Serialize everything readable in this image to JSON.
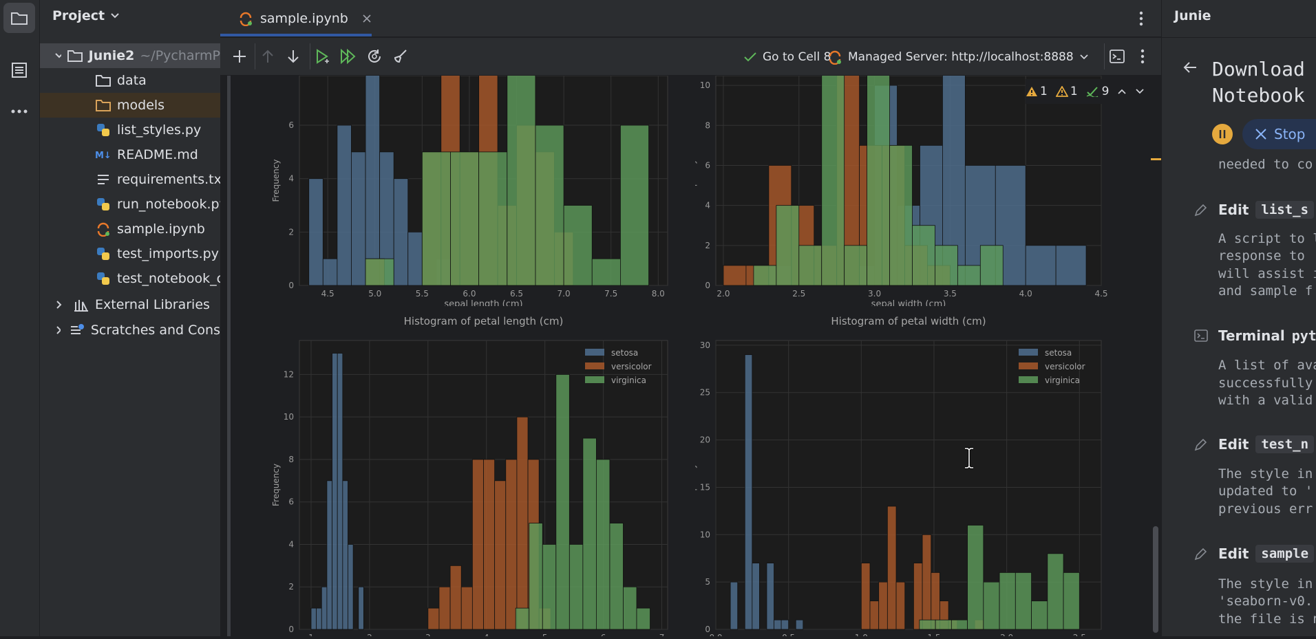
{
  "project": {
    "title": "Project",
    "root": {
      "name": "Junie2",
      "path": "~/PycharmP"
    },
    "items": [
      {
        "label": "data",
        "icon": "folder-icon"
      },
      {
        "label": "models",
        "icon": "folder-icon"
      },
      {
        "label": "list_styles.py",
        "icon": "python-file-icon"
      },
      {
        "label": "README.md",
        "icon": "markdown-file-icon"
      },
      {
        "label": "requirements.txt",
        "icon": "text-file-icon"
      },
      {
        "label": "run_notebook.py",
        "icon": "python-file-icon"
      },
      {
        "label": "sample.ipynb",
        "icon": "notebook-file-icon"
      },
      {
        "label": "test_imports.py",
        "icon": "python-file-icon"
      },
      {
        "label": "test_notebook_c",
        "icon": "python-file-icon"
      }
    ],
    "external": "External Libraries",
    "scratches": "Scratches and Cons"
  },
  "editor": {
    "tab_label": "sample.ipynb",
    "go_to_cell": "Go to Cell 8",
    "server": "Managed Server: http://localhost:8888",
    "inspections": {
      "errors": "1",
      "warnings": "1",
      "ok": "9"
    }
  },
  "junie": {
    "title": "Junie",
    "heading_line1": "Download",
    "heading_line2": "Notebook",
    "stop_label": "Stop",
    "needed_text": "needed to co",
    "entries": [
      {
        "action": "Edit",
        "target": "list_s",
        "lines": [
          "A script to l",
          "response to",
          "will assist i",
          "and sample f"
        ]
      },
      {
        "action": "Terminal",
        "target": "pyth",
        "lines": [
          "A list of ava",
          "successfully",
          "with a valid"
        ]
      },
      {
        "action": "Edit",
        "target": "test_n",
        "lines": [
          "The style in",
          "updated to '",
          "previous err"
        ]
      },
      {
        "action": "Edit",
        "target": "sample",
        "lines": [
          "The style in",
          "'seaborn-v0.",
          "the file is n"
        ]
      }
    ]
  },
  "colors": {
    "setosa": "#4f6f8f",
    "versicolor": "#a8582a",
    "virginica": "#5d9a5a",
    "virginica_light": "#8fc06e"
  },
  "chart_data": [
    {
      "type": "histogram",
      "title": "",
      "xlabel": "sepal length (cm)",
      "ylabel": "Frequency",
      "xlim": [
        4.2,
        8.1
      ],
      "ylim": [
        0,
        8.5
      ],
      "xticks": [
        "4.5",
        "5.0",
        "5.5",
        "6.0",
        "6.5",
        "7.0",
        "7.5",
        "8.0"
      ],
      "yticks": [
        "0",
        "2",
        "4",
        "6",
        "8"
      ],
      "series": [
        {
          "name": "setosa",
          "bins": [
            [
              4.3,
              4.45,
              4
            ],
            [
              4.45,
              4.6,
              1
            ],
            [
              4.6,
              4.75,
              6
            ],
            [
              4.75,
              4.9,
              5
            ],
            [
              4.9,
              5.05,
              9
            ],
            [
              5.05,
              5.2,
              5
            ],
            [
              5.2,
              5.35,
              4
            ],
            [
              5.35,
              5.5,
              2
            ],
            [
              5.5,
              5.65,
              0
            ],
            [
              5.65,
              5.8,
              1
            ]
          ]
        },
        {
          "name": "versicolor",
          "bins": [
            [
              4.9,
              5.1,
              1
            ],
            [
              5.1,
              5.3,
              0
            ],
            [
              5.3,
              5.5,
              0
            ],
            [
              5.5,
              5.7,
              5
            ],
            [
              5.7,
              5.9,
              9
            ],
            [
              5.9,
              6.1,
              5
            ],
            [
              6.1,
              6.3,
              9
            ],
            [
              6.3,
              6.5,
              3
            ],
            [
              6.5,
              6.7,
              6
            ],
            [
              6.7,
              6.9,
              5
            ],
            [
              6.9,
              7.1,
              2
            ]
          ]
        },
        {
          "name": "virginica",
          "bins": [
            [
              4.9,
              5.2,
              1
            ],
            [
              5.2,
              5.5,
              0
            ],
            [
              5.5,
              5.8,
              5
            ],
            [
              5.8,
              6.1,
              5
            ],
            [
              6.1,
              6.4,
              5
            ],
            [
              6.4,
              6.7,
              14
            ],
            [
              6.7,
              7.0,
              6
            ],
            [
              7.0,
              7.3,
              3
            ],
            [
              7.3,
              7.6,
              1
            ],
            [
              7.6,
              7.9,
              6
            ]
          ]
        }
      ]
    },
    {
      "type": "histogram",
      "title": "",
      "xlabel": "sepal width (cm)",
      "ylabel": "Frequency",
      "xlim": [
        1.95,
        4.5
      ],
      "ylim": [
        0,
        11
      ],
      "xticks": [
        "2.0",
        "2.5",
        "3.0",
        "3.5",
        "4.0",
        "4.5"
      ],
      "yticks": [
        "0",
        "2",
        "4",
        "6",
        "8",
        "10"
      ],
      "series": [
        {
          "name": "setosa",
          "bins": [
            [
              2.3,
              2.45,
              1
            ],
            [
              2.9,
              3.05,
              1
            ],
            [
              3.0,
              3.15,
              10
            ],
            [
              3.15,
              3.3,
              4
            ],
            [
              3.3,
              3.45,
              7
            ],
            [
              3.45,
              3.6,
              14
            ],
            [
              3.6,
              3.8,
              6
            ],
            [
              3.8,
              4.0,
              6
            ],
            [
              4.0,
              4.2,
              2
            ],
            [
              4.2,
              4.4,
              2
            ]
          ]
        },
        {
          "name": "versicolor",
          "bins": [
            [
              2.0,
              2.15,
              1
            ],
            [
              2.15,
              2.3,
              1
            ],
            [
              2.3,
              2.45,
              6
            ],
            [
              2.45,
              2.6,
              4
            ],
            [
              2.6,
              2.75,
              2
            ],
            [
              2.75,
              2.9,
              11
            ],
            [
              2.9,
              3.05,
              7
            ],
            [
              3.05,
              3.2,
              7
            ],
            [
              3.2,
              3.35,
              2
            ],
            [
              3.35,
              3.5,
              1
            ]
          ]
        },
        {
          "name": "virginica",
          "bins": [
            [
              2.2,
              2.35,
              1
            ],
            [
              2.35,
              2.5,
              4
            ],
            [
              2.5,
              2.65,
              2
            ],
            [
              2.65,
              2.8,
              11
            ],
            [
              2.8,
              2.95,
              2
            ],
            [
              2.95,
              3.1,
              11
            ],
            [
              3.1,
              3.25,
              7
            ],
            [
              3.25,
              3.4,
              3
            ],
            [
              3.4,
              3.55,
              2
            ],
            [
              3.55,
              3.7,
              1
            ],
            [
              3.7,
              3.85,
              2
            ]
          ]
        }
      ]
    },
    {
      "type": "histogram",
      "title": "Histogram of petal length (cm)",
      "xlabel": "",
      "ylabel": "Frequency",
      "xlim": [
        0.8,
        7.1
      ],
      "ylim": [
        0,
        13.6
      ],
      "xticks": [
        "1",
        "2",
        "3",
        "4",
        "5",
        "6",
        "7"
      ],
      "yticks": [
        "0",
        "2",
        "4",
        "6",
        "8",
        "10",
        "12"
      ],
      "legend": [
        "setosa",
        "versicolor",
        "virginica"
      ],
      "series": [
        {
          "name": "setosa",
          "bins": [
            [
              1.0,
              1.09,
              1
            ],
            [
              1.09,
              1.18,
              1
            ],
            [
              1.18,
              1.27,
              2
            ],
            [
              1.27,
              1.36,
              7
            ],
            [
              1.36,
              1.45,
              13
            ],
            [
              1.45,
              1.54,
              13
            ],
            [
              1.54,
              1.63,
              7
            ],
            [
              1.63,
              1.72,
              4
            ],
            [
              1.72,
              1.81,
              0
            ],
            [
              1.81,
              1.9,
              2
            ]
          ]
        },
        {
          "name": "versicolor",
          "bins": [
            [
              3.0,
              3.19,
              1
            ],
            [
              3.19,
              3.38,
              2
            ],
            [
              3.38,
              3.57,
              3
            ],
            [
              3.57,
              3.76,
              2
            ],
            [
              3.76,
              3.95,
              8
            ],
            [
              3.95,
              4.14,
              8
            ],
            [
              4.14,
              4.33,
              7
            ],
            [
              4.33,
              4.52,
              8
            ],
            [
              4.52,
              4.71,
              10
            ],
            [
              4.71,
              4.9,
              8
            ],
            [
              4.9,
              5.1,
              1
            ]
          ]
        },
        {
          "name": "virginica",
          "bins": [
            [
              4.5,
              4.73,
              1
            ],
            [
              4.73,
              4.96,
              5
            ],
            [
              4.96,
              5.19,
              4
            ],
            [
              5.19,
              5.42,
              12
            ],
            [
              5.42,
              5.65,
              4
            ],
            [
              5.65,
              5.88,
              9
            ],
            [
              5.88,
              6.11,
              8
            ],
            [
              6.11,
              6.34,
              5
            ],
            [
              6.34,
              6.57,
              2
            ],
            [
              6.57,
              6.8,
              1
            ],
            [
              6.8,
              6.9,
              0
            ]
          ]
        }
      ]
    },
    {
      "type": "histogram",
      "title": "Histogram of petal width (cm)",
      "xlabel": "",
      "ylabel": "Frequency",
      "xlim": [
        0.0,
        2.65
      ],
      "ylim": [
        0,
        30.5
      ],
      "xticks": [
        "0.0",
        "0.5",
        "1.0",
        "1.5",
        "2.0",
        "2.5"
      ],
      "yticks": [
        "0",
        "5",
        "10",
        "15",
        "20",
        "25",
        "30"
      ],
      "legend": [
        "setosa",
        "versicolor",
        "virginica"
      ],
      "series": [
        {
          "name": "setosa",
          "bins": [
            [
              0.1,
              0.15,
              5
            ],
            [
              0.15,
              0.2,
              0
            ],
            [
              0.2,
              0.25,
              29
            ],
            [
              0.25,
              0.3,
              7
            ],
            [
              0.3,
              0.35,
              0
            ],
            [
              0.35,
              0.4,
              7
            ],
            [
              0.4,
              0.45,
              1
            ],
            [
              0.45,
              0.5,
              1
            ],
            [
              0.5,
              0.55,
              0
            ],
            [
              0.55,
              0.6,
              1
            ]
          ]
        },
        {
          "name": "versicolor",
          "bins": [
            [
              1.0,
              1.06,
              7
            ],
            [
              1.06,
              1.12,
              3
            ],
            [
              1.12,
              1.18,
              5
            ],
            [
              1.18,
              1.24,
              13
            ],
            [
              1.24,
              1.3,
              5
            ],
            [
              1.3,
              1.36,
              0
            ],
            [
              1.36,
              1.42,
              7
            ],
            [
              1.42,
              1.48,
              10
            ],
            [
              1.48,
              1.54,
              6
            ],
            [
              1.54,
              1.6,
              3
            ],
            [
              1.6,
              1.66,
              1
            ],
            [
              1.66,
              1.72,
              0
            ],
            [
              1.72,
              1.78,
              0
            ],
            [
              1.78,
              1.84,
              1
            ]
          ]
        },
        {
          "name": "virginica",
          "bins": [
            [
              1.4,
              1.51,
              1
            ],
            [
              1.51,
              1.62,
              1
            ],
            [
              1.62,
              1.73,
              1
            ],
            [
              1.73,
              1.84,
              11
            ],
            [
              1.84,
              1.95,
              5
            ],
            [
              1.95,
              2.06,
              6
            ],
            [
              2.06,
              2.17,
              6
            ],
            [
              2.17,
              2.28,
              3
            ],
            [
              2.28,
              2.39,
              8
            ],
            [
              2.39,
              2.5,
              6
            ]
          ]
        }
      ]
    }
  ]
}
